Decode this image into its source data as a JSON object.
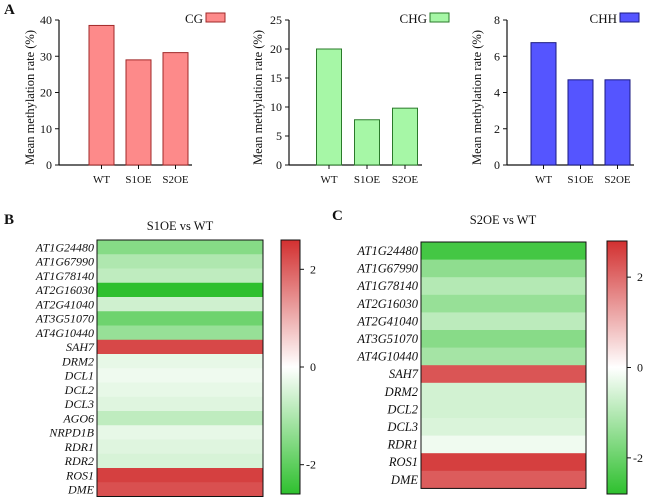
{
  "panels": {
    "a": "A",
    "b": "B",
    "c": "C"
  },
  "colors": {
    "cg_fill": "#fd8a8a",
    "cg_stroke": "#a02828",
    "chg_fill": "#a6f7a6",
    "chg_stroke": "#2a7a2a",
    "chh_fill": "#5555ff",
    "chh_stroke": "#1a1a80",
    "heat_high": "#d23030",
    "heat_mid": "#ffffff",
    "heat_low": "#2ec02e"
  },
  "chart_data": [
    {
      "type": "bar",
      "title": "",
      "legend": "CG",
      "legend_position": "top-right",
      "ylabel": "Mean methylation rate (%)",
      "xlabel": "",
      "categories": [
        "WT",
        "S1OE",
        "S2OE"
      ],
      "values": [
        38.5,
        29.0,
        31.0
      ],
      "ylim": [
        0,
        40
      ],
      "yticks": [
        0,
        10,
        20,
        30,
        40
      ],
      "grid": false
    },
    {
      "type": "bar",
      "title": "",
      "legend": "CHG",
      "legend_position": "top-right",
      "ylabel": "Mean methylation rate (%)",
      "xlabel": "",
      "categories": [
        "WT",
        "S1OE",
        "S2OE"
      ],
      "values": [
        20.0,
        7.8,
        9.8
      ],
      "ylim": [
        0,
        25
      ],
      "yticks": [
        0,
        5,
        10,
        15,
        20,
        25
      ],
      "grid": false
    },
    {
      "type": "bar",
      "title": "",
      "legend": "CHH",
      "legend_position": "top-right",
      "ylabel": "Mean methylation rate (%)",
      "xlabel": "",
      "categories": [
        "WT",
        "S1OE",
        "S2OE"
      ],
      "values": [
        6.75,
        4.7,
        4.7
      ],
      "ylim": [
        0,
        8
      ],
      "yticks": [
        0,
        2,
        4,
        6,
        8
      ],
      "grid": false
    },
    {
      "type": "heatmap",
      "title": "S1OE vs WT",
      "rows": [
        "AT1G24480",
        "AT1G67990",
        "AT1G78140",
        "AT2G16030",
        "AT2G41040",
        "AT3G51070",
        "AT4G10440",
        "SAH7",
        "DRM2",
        "DCL1",
        "DCL2",
        "DCL3",
        "AGO6",
        "NRPD1B",
        "RDR1",
        "RDR2",
        "ROS1",
        "DME"
      ],
      "values": [
        -1.5,
        -1.0,
        -0.8,
        -2.6,
        -0.6,
        -1.8,
        -1.3,
        2.3,
        -0.3,
        -0.2,
        -0.3,
        -0.4,
        -0.8,
        -0.3,
        -0.4,
        -0.5,
        2.4,
        2.2
      ],
      "colorbar_range": [
        -2.6,
        2.6
      ],
      "colorbar_ticks": [
        2,
        0,
        -2
      ]
    },
    {
      "type": "heatmap",
      "title": "S2OE vs WT",
      "rows": [
        "AT1G24480",
        "AT1G67990",
        "AT1G78140",
        "AT2G16030",
        "AT2G41040",
        "AT3G51070",
        "AT4G10440",
        "SAH7",
        "DRM2",
        "DCL2",
        "DCL3",
        "RDR1",
        "ROS1",
        "DME"
      ],
      "values": [
        -2.5,
        -1.5,
        -1.0,
        -1.4,
        -0.9,
        -1.6,
        -1.2,
        2.3,
        -0.6,
        -0.6,
        -0.5,
        -0.2,
        2.6,
        2.2
      ],
      "colorbar_range": [
        -2.8,
        2.8
      ],
      "colorbar_ticks": [
        2,
        0,
        -2
      ]
    }
  ]
}
